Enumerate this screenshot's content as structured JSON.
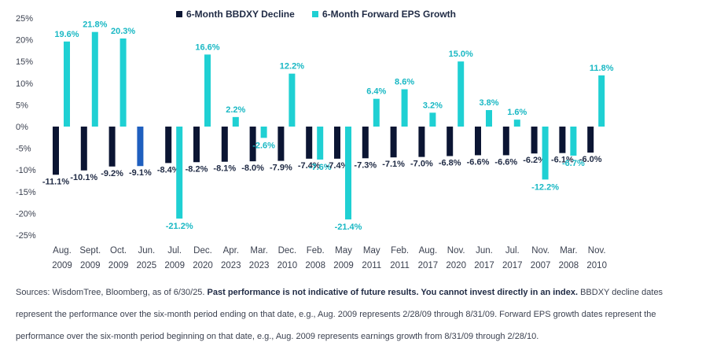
{
  "chart_data": {
    "type": "bar",
    "categories": [
      [
        "Aug.",
        "2009"
      ],
      [
        "Sept.",
        "2009"
      ],
      [
        "Oct.",
        "2009"
      ],
      [
        "Jun.",
        "2025"
      ],
      [
        "Jul.",
        "2009"
      ],
      [
        "Dec.",
        "2020"
      ],
      [
        "Apr.",
        "2023"
      ],
      [
        "Mar.",
        "2023"
      ],
      [
        "Dec.",
        "2010"
      ],
      [
        "Feb.",
        "2008"
      ],
      [
        "May",
        "2009"
      ],
      [
        "May",
        "2011"
      ],
      [
        "Feb.",
        "2011"
      ],
      [
        "Aug.",
        "2017"
      ],
      [
        "Nov.",
        "2020"
      ],
      [
        "Jun.",
        "2017"
      ],
      [
        "Jul.",
        "2017"
      ],
      [
        "Nov.",
        "2007"
      ],
      [
        "Mar.",
        "2008"
      ],
      [
        "Nov.",
        "2010"
      ]
    ],
    "series": [
      {
        "name": "6-Month BBDXY Decline",
        "color": "#0b1533",
        "highlight_color": "#1f5fbf",
        "highlight_index": 3,
        "values": [
          -11.1,
          -10.1,
          -9.2,
          -9.1,
          -8.4,
          -8.2,
          -8.1,
          -8.0,
          -7.9,
          -7.4,
          -7.4,
          -7.3,
          -7.1,
          -7.0,
          -6.8,
          -6.6,
          -6.6,
          -6.2,
          -6.1,
          -6.0
        ],
        "labels": [
          "-11.1%",
          "-10.1%",
          "-9.2%",
          "-9.1%",
          "-8.4%",
          "-8.2%",
          "-8.1%",
          "-8.0%",
          "-7.9%",
          "-7.4%",
          "-7.4%",
          "-7.3%",
          "-7.1%",
          "-7.0%",
          "-6.8%",
          "-6.6%",
          "-6.6%",
          "-6.2%",
          "-6.1%",
          "-6.0%"
        ]
      },
      {
        "name": "6-Month Forward EPS Growth",
        "color": "#1fd0d3",
        "label_color": "#19b8c4",
        "values": [
          19.6,
          21.8,
          20.3,
          null,
          -21.2,
          16.6,
          2.2,
          -2.6,
          12.2,
          -7.6,
          -21.4,
          6.4,
          8.6,
          3.2,
          15.0,
          3.8,
          1.6,
          -12.2,
          -6.7,
          11.8
        ],
        "labels": [
          "19.6%",
          "21.8%",
          "20.3%",
          "",
          "-21.2%",
          "16.6%",
          "2.2%",
          "-2.6%",
          "12.2%",
          "-7.6%",
          "-21.4%",
          "6.4%",
          "8.6%",
          "3.2%",
          "15.0%",
          "3.8%",
          "1.6%",
          "-12.2%",
          "-6.7%",
          "11.8%"
        ]
      }
    ],
    "ylim": [
      -25,
      25
    ],
    "yticks": [
      25,
      20,
      15,
      10,
      5,
      0,
      -5,
      -10,
      -15,
      -20,
      -25
    ],
    "ytick_labels": [
      "25%",
      "20%",
      "15%",
      "10%",
      "5%",
      "0%",
      "-5%",
      "-10%",
      "-15%",
      "-20%",
      "-25%"
    ],
    "grid": false,
    "legend_position": "top-center",
    "title": "",
    "xlabel": "",
    "ylabel": ""
  },
  "source": {
    "prefix": "Sources: WisdomTree, Bloomberg, as of 6/30/25. ",
    "bold": "Past performance is not indicative of future results. You cannot invest directly in an index.",
    "suffix": " BBDXY decline dates represent the performance over the six-month period ending on that date, e.g., Aug. 2009 represents 2/28/09 through 8/31/09. Forward EPS growth dates represent the performance over the six-month period beginning on that date, e.g., Aug. 2009 represents earnings growth from 8/31/09 through 2/28/10."
  }
}
